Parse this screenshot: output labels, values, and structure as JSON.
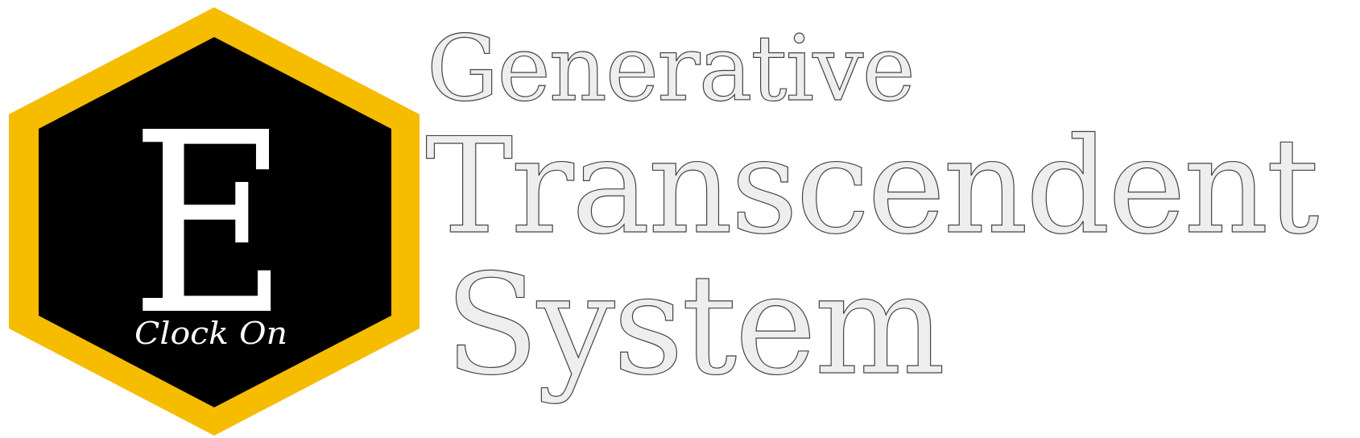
{
  "logo": {
    "letter": "E",
    "tagline": "Clock On",
    "colors": {
      "hexagon_border": "#F5BC00",
      "hexagon_fill": "#000000",
      "letter": "#FFFFFF"
    }
  },
  "wordmark": {
    "line_1": "Generative",
    "line_2": "Transcendent",
    "line_3": "System",
    "colors": {
      "fill": "#EEEEEE",
      "outline": "#444444"
    }
  }
}
